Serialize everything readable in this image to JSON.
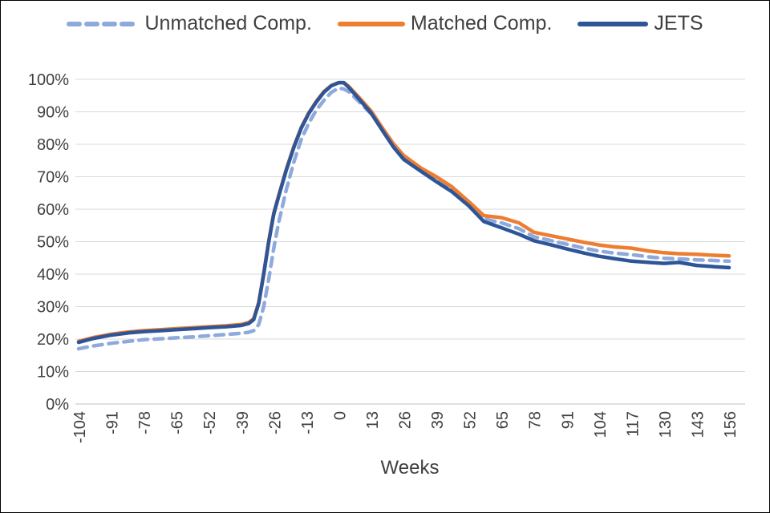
{
  "chart_data": {
    "type": "line",
    "title": "",
    "xlabel": "Weeks",
    "ylabel": "",
    "xlim": [
      -104,
      156
    ],
    "ylim": [
      0,
      100
    ],
    "grid": true,
    "legend_position": "top",
    "y_ticks": [
      "0%",
      "10%",
      "20%",
      "30%",
      "40%",
      "50%",
      "60%",
      "70%",
      "80%",
      "90%",
      "100%"
    ],
    "x_ticks": [
      -104,
      -91,
      -78,
      -65,
      -52,
      -39,
      -26,
      -13,
      0,
      13,
      26,
      39,
      52,
      65,
      78,
      91,
      104,
      117,
      130,
      143,
      156
    ],
    "x": [
      -104,
      -98,
      -91,
      -84,
      -78,
      -71,
      -65,
      -58,
      -52,
      -45,
      -39,
      -36,
      -34,
      -32,
      -30,
      -28,
      -26,
      -24,
      -21,
      -18,
      -15,
      -12,
      -9,
      -6,
      -3,
      0,
      2,
      4,
      8,
      13,
      18,
      22,
      26,
      33,
      39,
      45,
      52,
      58,
      65,
      72,
      78,
      85,
      91,
      98,
      104,
      110,
      117,
      124,
      130,
      136,
      143,
      150,
      156
    ],
    "series": [
      {
        "name": "Unmatched Comp.",
        "color": "#8EA9DB",
        "dash": true,
        "values": [
          17,
          17.9,
          18.7,
          19.3,
          19.8,
          20.1,
          20.4,
          20.7,
          21,
          21.4,
          21.8,
          22.1,
          22.6,
          24.5,
          30,
          38.5,
          48,
          56,
          66,
          74.5,
          81.5,
          86.5,
          90.5,
          93.5,
          96,
          97.3,
          97,
          96.2,
          93.2,
          89.3,
          84,
          79.5,
          75.9,
          72.1,
          69.2,
          66.2,
          61.6,
          57,
          55.8,
          54,
          51.5,
          50.3,
          49.2,
          48,
          47.1,
          46.5,
          46,
          45.3,
          44.9,
          44.7,
          44.4,
          44.2,
          44
        ]
      },
      {
        "name": "Matched Comp.",
        "color": "#ED7D31",
        "dash": false,
        "values": [
          19.3,
          20.5,
          21.5,
          22.2,
          22.6,
          22.9,
          23.2,
          23.5,
          23.8,
          24.1,
          24.5,
          25.1,
          26.3,
          31.3,
          40.3,
          50.3,
          58.8,
          64.3,
          72.3,
          79.3,
          85.2,
          89.7,
          93.2,
          96.2,
          98.1,
          99,
          99,
          97.8,
          94.5,
          90.2,
          84.4,
          80,
          76.5,
          72.6,
          70,
          67,
          62.3,
          58,
          57.4,
          55.8,
          52.9,
          51.8,
          50.9,
          49.8,
          49,
          48.4,
          48,
          47.1,
          46.6,
          46.3,
          46.1,
          45.8,
          45.6
        ]
      },
      {
        "name": "JETS",
        "color": "#2E5597",
        "dash": false,
        "values": [
          19,
          20.2,
          21.2,
          21.9,
          22.3,
          22.6,
          22.9,
          23.2,
          23.5,
          23.8,
          24.2,
          24.8,
          26,
          31,
          40,
          50,
          58.5,
          64,
          72,
          79,
          85,
          89.5,
          93,
          96,
          98,
          99,
          99,
          97.5,
          94,
          89.5,
          83.6,
          79,
          75.3,
          71.6,
          68.5,
          65.5,
          61,
          56.2,
          54.3,
          52.3,
          50.3,
          49,
          47.8,
          46.5,
          45.5,
          44.8,
          44,
          43.6,
          43.3,
          43.6,
          42.7,
          42.3,
          42
        ]
      }
    ],
    "styles": {
      "gridline_color": "#D9D9D9",
      "axis_color": "#BFBFBF",
      "tick_label_color": "#404040",
      "axis_title_color": "#404040"
    }
  }
}
